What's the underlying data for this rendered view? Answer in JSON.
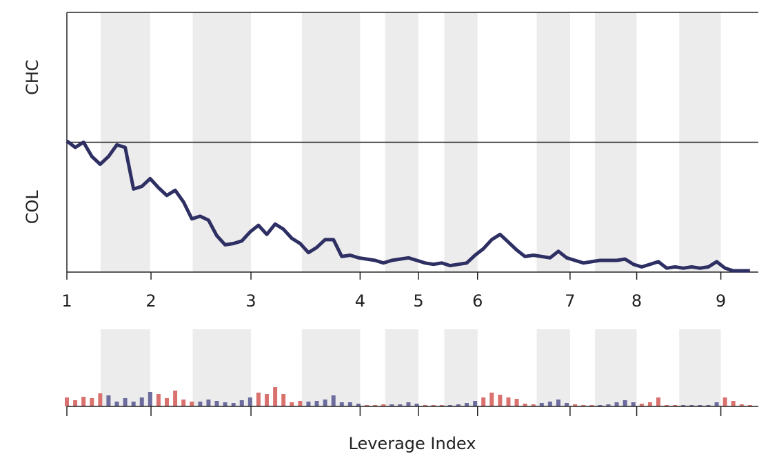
{
  "chart_data": [
    {
      "type": "line",
      "y_bands": [
        "CHC",
        "COL"
      ],
      "x": [
        0,
        1,
        2,
        3,
        4,
        5,
        6,
        7,
        8,
        9,
        10,
        11,
        12,
        13,
        14,
        15,
        16,
        17,
        18,
        19,
        20,
        21,
        22,
        23,
        24,
        25,
        26,
        27,
        28,
        29,
        30,
        31,
        32,
        33,
        34,
        35,
        36,
        37,
        38,
        39,
        40,
        41,
        42,
        43,
        44,
        45,
        46,
        47,
        48,
        49,
        50,
        51,
        52,
        53,
        54,
        55,
        56,
        57,
        58,
        59,
        60,
        61,
        62,
        63,
        64,
        65,
        66,
        67,
        68,
        69,
        70,
        71,
        72,
        73,
        74,
        75,
        76,
        77,
        78,
        79,
        80,
        81,
        82
      ],
      "values": [
        1.01,
        0.96,
        1.0,
        0.89,
        0.83,
        0.89,
        0.98,
        0.96,
        0.64,
        0.66,
        0.72,
        0.65,
        0.59,
        0.63,
        0.54,
        0.41,
        0.43,
        0.4,
        0.28,
        0.21,
        0.22,
        0.24,
        0.31,
        0.36,
        0.29,
        0.37,
        0.33,
        0.26,
        0.22,
        0.15,
        0.19,
        0.25,
        0.25,
        0.12,
        0.13,
        0.11,
        0.1,
        0.09,
        0.07,
        0.09,
        0.1,
        0.11,
        0.09,
        0.07,
        0.06,
        0.07,
        0.05,
        0.06,
        0.07,
        0.13,
        0.18,
        0.25,
        0.29,
        0.23,
        0.17,
        0.12,
        0.13,
        0.12,
        0.11,
        0.16,
        0.11,
        0.09,
        0.07,
        0.08,
        0.09,
        0.09,
        0.09,
        0.1,
        0.06,
        0.04,
        0.06,
        0.08,
        0.03,
        0.04,
        0.03,
        0.04,
        0.03,
        0.04,
        0.08,
        0.03,
        0.01,
        0.01,
        0.01
      ],
      "color": "#2e2f63",
      "xlim": [
        0,
        83
      ],
      "ylim": [
        0,
        2
      ],
      "xticks": [
        {
          "value": 0,
          "label": "1"
        },
        {
          "value": 10.1,
          "label": "2"
        },
        {
          "value": 22.1,
          "label": "3"
        },
        {
          "value": 35.2,
          "label": "4"
        },
        {
          "value": 42.2,
          "label": "5"
        },
        {
          "value": 49.3,
          "label": "6"
        },
        {
          "value": 60.4,
          "label": "7"
        },
        {
          "value": 68.4,
          "label": "8"
        },
        {
          "value": 78.5,
          "label": "9"
        }
      ],
      "shaded_regions": [
        [
          4.06,
          10.0
        ],
        [
          15.1,
          22.1
        ],
        [
          28.2,
          35.2
        ],
        [
          38.2,
          42.2
        ],
        [
          45.3,
          49.3
        ],
        [
          56.4,
          60.4
        ],
        [
          63.4,
          68.4
        ],
        [
          73.5,
          78.5
        ]
      ],
      "shade_color": "#ececec"
    },
    {
      "type": "bar",
      "x_label": "Leverage Index",
      "values": [
        13,
        9,
        14,
        12,
        19,
        16,
        7,
        12,
        7,
        13,
        21,
        18,
        12,
        23,
        10,
        7,
        7,
        10,
        8,
        6,
        5,
        9,
        13,
        20,
        18,
        28,
        18,
        6,
        8,
        7,
        8,
        10,
        16,
        6,
        6,
        4,
        2,
        2,
        3,
        3,
        3,
        6,
        4,
        2,
        2,
        2,
        2,
        3,
        5,
        8,
        13,
        20,
        17,
        13,
        11,
        4,
        3,
        5,
        7,
        10,
        5,
        3,
        2,
        2,
        2,
        3,
        6,
        9,
        6,
        4,
        6,
        13,
        2,
        2,
        2,
        2,
        2,
        2,
        6,
        13,
        8,
        3,
        2
      ],
      "color": "#d9726e",
      "highlight_color": "#6c6c9e",
      "ylim": [
        0,
        30
      ]
    }
  ]
}
